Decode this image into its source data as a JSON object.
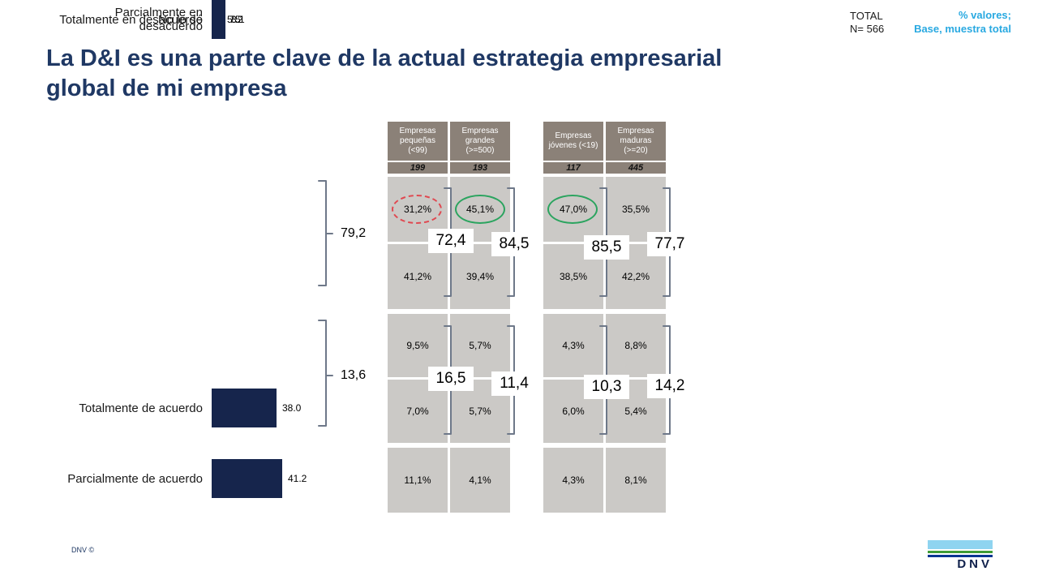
{
  "header": {
    "title": "La D&I es una parte clave de la actual estrategia empresarial global de mi empresa",
    "total_label": "TOTAL",
    "total_n": "N= 566",
    "note_line1": "% valores;",
    "note_line2": "Base, muestra total"
  },
  "footer": {
    "copyright": "DNV ©",
    "logo_text": "DNV"
  },
  "colors": {
    "title_navy": "#1F3864",
    "bar_navy": "#16254C",
    "note_cyan": "#29A9E1",
    "table_header_taupe": "#8B8178",
    "table_cell_gray": "#CBC9C6",
    "bracket_slate": "#6E7889",
    "highlight_red": "#E04850",
    "highlight_green": "#2BA45F",
    "logo_sky": "#8FD4F0",
    "logo_green": "#3F9C35",
    "logo_navy": "#003591"
  },
  "chart_data": {
    "type": "bar",
    "orientation": "horizontal",
    "title": "La D&I es una parte clave de la actual estrategia empresarial global de mi empresa",
    "unit_note": "% valores; Base, muestra total",
    "total_n": 566,
    "categories": [
      "Totalmente de acuerdo",
      "Parcialmente de acuerdo",
      "Parcialmente en desacuerdo",
      "Totalmente en desacuerdo",
      "No lo sé"
    ],
    "values": [
      38.0,
      41.2,
      8.1,
      5.5,
      7.2
    ],
    "value_labels": [
      "38.0",
      "41.2",
      "8.1",
      "5.5",
      "7.2"
    ],
    "totals": {
      "agree": "79,2",
      "disagree": "13,6"
    },
    "tables": [
      {
        "name": "company-size",
        "columns": [
          {
            "header": "Empresas pequeñas (<99)",
            "n": "199",
            "values": [
              "31,2%",
              "41,2%",
              "9,5%",
              "7,0%",
              "11,1%"
            ],
            "agree_total": "72,4",
            "disagree_total": "16,5",
            "highlight": "red-dashed"
          },
          {
            "header": "Empresas grandes (>=500)",
            "n": "193",
            "values": [
              "45,1%",
              "39,4%",
              "5,7%",
              "5,7%",
              "4,1%"
            ],
            "agree_total": "84,5",
            "disagree_total": "11,4",
            "highlight": "green"
          }
        ]
      },
      {
        "name": "company-age",
        "columns": [
          {
            "header": "Empresas jóvenes (<19)",
            "n": "117",
            "values": [
              "47,0%",
              "38,5%",
              "4,3%",
              "6,0%",
              "4,3%"
            ],
            "agree_total": "85,5",
            "disagree_total": "10,3",
            "highlight": "green"
          },
          {
            "header": "Empresas maduras (>=20)",
            "n": "445",
            "values": [
              "35,5%",
              "42,2%",
              "8,8%",
              "5,4%",
              "8,1%"
            ],
            "agree_total": "77,7",
            "disagree_total": "14,2",
            "highlight": null
          }
        ]
      }
    ]
  }
}
